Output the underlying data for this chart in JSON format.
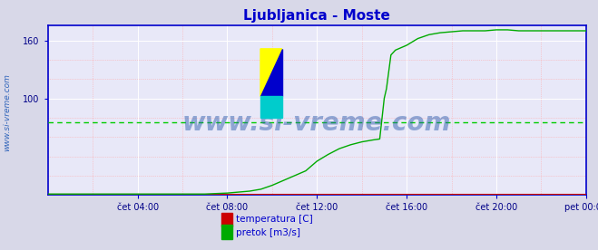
{
  "title": "Ljubljanica - Moste",
  "title_color": "#0000cc",
  "title_fontsize": 11,
  "bg_color": "#d8d8e8",
  "plot_bg_color": "#e8e8f8",
  "ylabel_text": "www.si-vreme.com",
  "ylabel_color": "#3366bb",
  "ylim": [
    0,
    176
  ],
  "yticks": [
    100,
    160
  ],
  "xlim_hours": [
    0,
    24
  ],
  "xtick_labels": [
    "čet 04:00",
    "čet 08:00",
    "čet 12:00",
    "čet 16:00",
    "čet 20:00",
    "pet 00:00"
  ],
  "xtick_positions": [
    4,
    8,
    12,
    16,
    20,
    24
  ],
  "temperatura_color": "#cc0000",
  "pretok_color": "#00aa00",
  "avg_pretok_color": "#00cc00",
  "avg_pretok_value": 75,
  "watermark_text": "www.si-vreme.com",
  "legend_labels": [
    "temperatura [C]",
    "pretok [m3/s]"
  ],
  "spine_color": "#0000cc",
  "temperatura_data_x": [
    0,
    1,
    2,
    3,
    4,
    5,
    6,
    7,
    8,
    9,
    10,
    11,
    12,
    13,
    14,
    15,
    16,
    17,
    18,
    19,
    20,
    21,
    22,
    23,
    24
  ],
  "temperatura_data_y": [
    1,
    1,
    1,
    1,
    1,
    1,
    1,
    1,
    1,
    1,
    1,
    1,
    1,
    1,
    1,
    1,
    1,
    1,
    1,
    1,
    1,
    1,
    1,
    1,
    1
  ],
  "pretok_data_x": [
    0,
    1,
    2,
    3,
    4,
    5,
    6,
    7,
    8,
    9,
    9.5,
    10,
    10.5,
    11,
    11.5,
    12,
    12.5,
    13,
    13.5,
    14,
    14.5,
    14.8,
    15.0,
    15.1,
    15.3,
    15.5,
    16,
    16.5,
    17,
    17.5,
    18,
    18.5,
    19,
    19.5,
    20,
    20.5,
    21,
    21.5,
    22,
    22.5,
    23,
    23.5,
    24
  ],
  "pretok_data_y": [
    1,
    1,
    1,
    1,
    1,
    1,
    1,
    1,
    2,
    4,
    6,
    10,
    15,
    20,
    25,
    35,
    42,
    48,
    52,
    55,
    57,
    58,
    100,
    110,
    145,
    150,
    155,
    162,
    166,
    168,
    169,
    170,
    170,
    170,
    171,
    171,
    170,
    170,
    170,
    170,
    170,
    170,
    170
  ]
}
